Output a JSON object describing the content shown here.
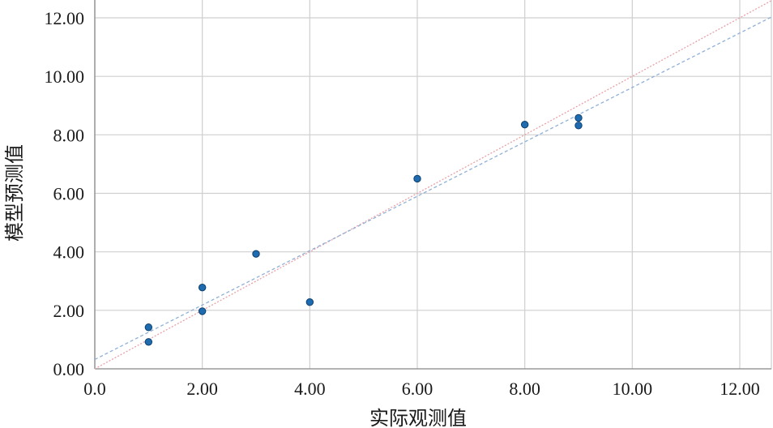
{
  "chart_data": {
    "type": "scatter",
    "title": "",
    "xlabel": "实际观测值",
    "ylabel": "模型预测值",
    "xlim": [
      0,
      12.6
    ],
    "ylim": [
      0,
      12.6
    ],
    "x_ticks": [
      0,
      2,
      4,
      6,
      8,
      10,
      12
    ],
    "x_tick_labels": [
      "0.0",
      "2.00",
      "4.00",
      "6.00",
      "8.00",
      "10.00",
      "12.00"
    ],
    "y_ticks": [
      0,
      2,
      4,
      6,
      8,
      10,
      12
    ],
    "y_tick_labels": [
      "0.00",
      "2.00",
      "4.00",
      "6.00",
      "8.00",
      "10.00",
      "12.00"
    ],
    "grid": true,
    "series": [
      {
        "points": [
          {
            "x": 1,
            "y": 1.42
          },
          {
            "x": 1,
            "y": 0.92
          },
          {
            "x": 2,
            "y": 2.78
          },
          {
            "x": 2,
            "y": 1.97
          },
          {
            "x": 3,
            "y": 3.93
          },
          {
            "x": 4,
            "y": 2.28
          },
          {
            "x": 6,
            "y": 6.5
          },
          {
            "x": 8,
            "y": 8.35
          },
          {
            "x": 9,
            "y": 8.58
          },
          {
            "x": 9,
            "y": 8.32
          }
        ]
      }
    ],
    "reference_lines": [
      {
        "kind": "identity",
        "slope": 1.0,
        "intercept": 0.0,
        "style": "dotted"
      },
      {
        "kind": "fit",
        "slope": 0.93,
        "intercept": 0.32,
        "style": "dashed"
      }
    ],
    "colors": {
      "points": "#1f6bb0",
      "point_edge": "#0d3f6e",
      "identity_line": "#e8a0a8",
      "fit_line": "#8fb0d8",
      "grid": "#cfcfcf",
      "axis": "#9a9a9a"
    }
  }
}
